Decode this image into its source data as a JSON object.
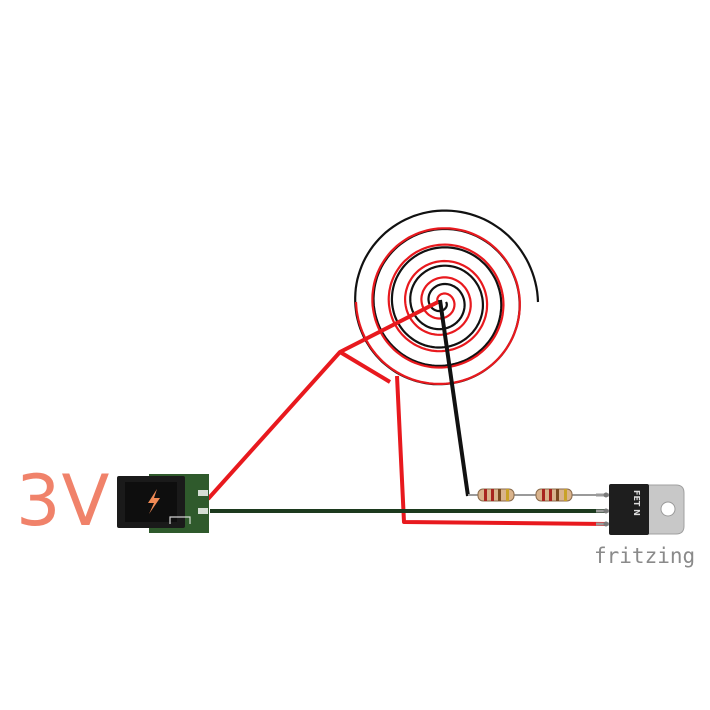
{
  "labels": {
    "voltage": "3V",
    "watermark": "fritzing",
    "transistor": "FET N"
  },
  "components": {
    "power_jack": "power-jack",
    "coil": "spiral-coil",
    "resistor_1": "resistor",
    "resistor_2": "resistor",
    "transistor": "n-channel-mosfet"
  },
  "colors": {
    "wire_red": "#e8191e",
    "wire_black": "#111111",
    "wire_green": "#1c3a1e",
    "jack_board": "#2f5a2c",
    "jack_body": "#1a1a1a",
    "jack_icon": "#f08a55",
    "voltage_text": "#f0826a",
    "watermark_text": "#8a8a8a",
    "fet_body": "#1e1e1e",
    "fet_tab": "#c8c8c8"
  },
  "icons": {
    "jack_symbol": "lightning-bolt-icon"
  }
}
